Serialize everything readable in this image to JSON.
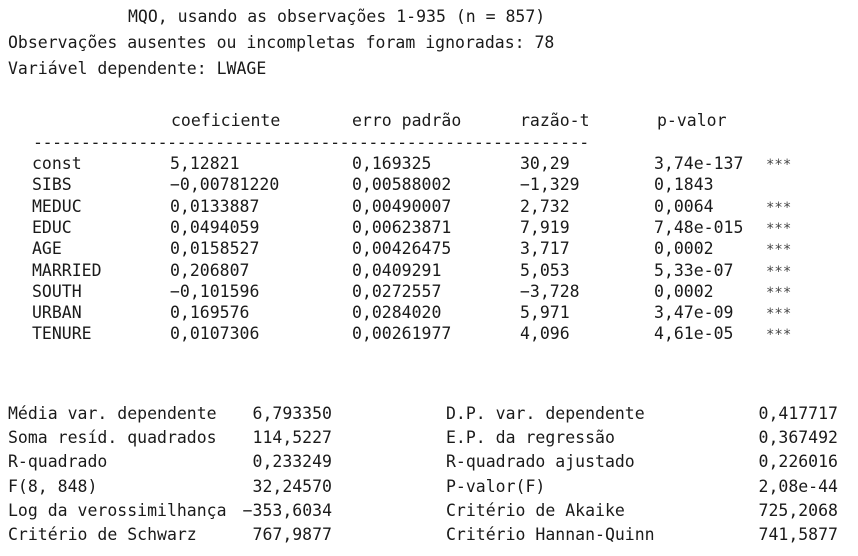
{
  "header": {
    "line1": "MQO, usando as observações 1-935 (n = 857)",
    "line2": "Observações ausentes ou incompletas foram ignoradas: 78",
    "line3": "Variável dependente: LWAGE"
  },
  "columns": [
    "coeficiente",
    "erro padrão",
    "razão-t",
    "p-valor"
  ],
  "separator": "----------------------------------------------------------",
  "rows": [
    {
      "name": "const",
      "coef": "5,12821",
      "se": "0,169325",
      "t": "30,29",
      "p": "3,74e-137",
      "stars": "***"
    },
    {
      "name": "SIBS",
      "coef": "−0,00781220",
      "se": "0,00588002",
      "t": "−1,329",
      "p": "0,1843",
      "stars": ""
    },
    {
      "name": "MEDUC",
      "coef": "0,0133887",
      "se": "0,00490007",
      "t": "2,732",
      "p": "0,0064",
      "stars": "***"
    },
    {
      "name": "EDUC",
      "coef": "0,0494059",
      "se": "0,00623871",
      "t": "7,919",
      "p": "7,48e-015",
      "stars": "***"
    },
    {
      "name": "AGE",
      "coef": "0,0158527",
      "se": "0,00426475",
      "t": "3,717",
      "p": "0,0002",
      "stars": "***"
    },
    {
      "name": "MARRIED",
      "coef": "0,206807",
      "se": "0,0409291",
      "t": "5,053",
      "p": "5,33e-07",
      "stars": "***"
    },
    {
      "name": "SOUTH",
      "coef": "−0,101596",
      "se": "0,0272557",
      "t": "−3,728",
      "p": "0,0002",
      "stars": "***"
    },
    {
      "name": "URBAN",
      "coef": "0,169576",
      "se": "0,0284020",
      "t": "5,971",
      "p": "3,47e-09",
      "stars": "***"
    },
    {
      "name": "TENURE",
      "coef": "0,0107306",
      "se": "0,00261977",
      "t": "4,096",
      "p": "4,61e-05",
      "stars": "***"
    }
  ],
  "stats": [
    {
      "l1": "Média var. dependente",
      "v1": "6,793350",
      "l2": "D.P. var. dependente",
      "v2": "0,417717"
    },
    {
      "l1": "Soma resíd. quadrados",
      "v1": "114,5227",
      "l2": "E.P. da regressão",
      "v2": "0,367492"
    },
    {
      "l1": "R-quadrado",
      "v1": "0,233249",
      "l2": "R-quadrado ajustado",
      "v2": "0,226016"
    },
    {
      "l1": "F(8, 848)",
      "v1": "32,24570",
      "l2": "P-valor(F)",
      "v2": "2,08e-44"
    },
    {
      "l1": "Log da verossimilhança",
      "v1": "−353,6034",
      "l2": "Critério de Akaike",
      "v2": "725,2068"
    },
    {
      "l1": "Critério de Schwarz",
      "v1": "767,9877",
      "l2": "Critério Hannan-Quinn",
      "v2": "741,5877"
    }
  ]
}
